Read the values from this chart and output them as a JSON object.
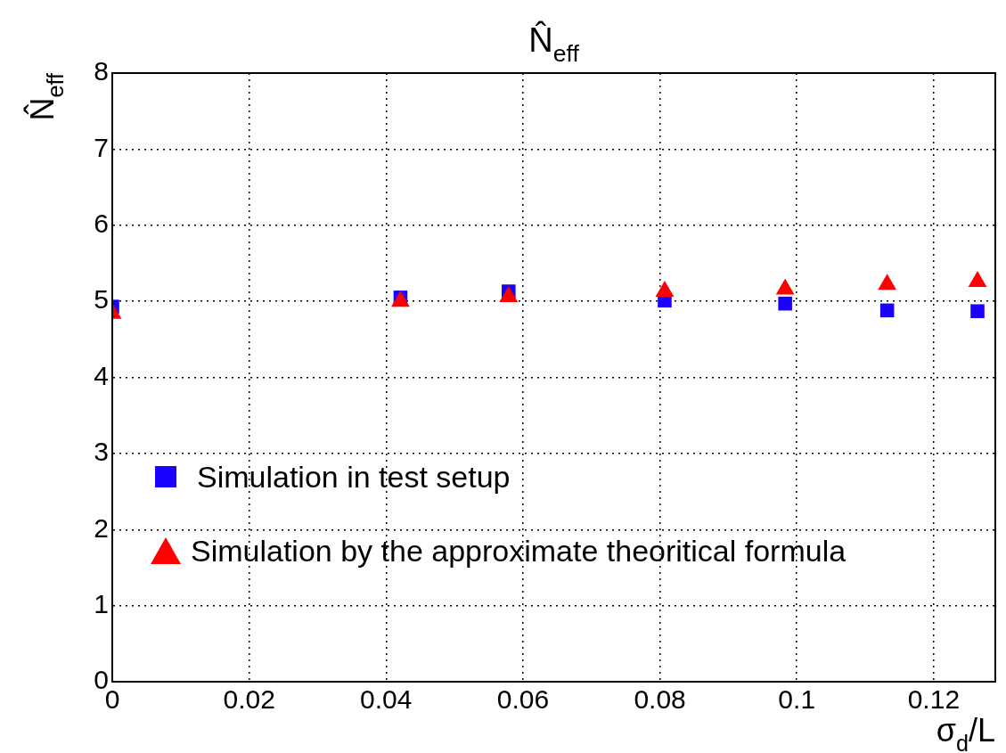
{
  "chart_data": {
    "type": "scatter",
    "title": "N̂$_{eff}$",
    "xlabel": "σ$_{d}$/L",
    "ylabel": "N̂$_{eff}$",
    "xlim": [
      0,
      0.129
    ],
    "xticks": [
      0,
      0.02,
      0.04,
      0.06,
      0.08,
      0.1,
      0.12
    ],
    "ylim": [
      0,
      8
    ],
    "yticks": [
      0,
      1,
      2,
      3,
      4,
      5,
      6,
      7,
      8
    ],
    "grid": true,
    "legend": "bottom left",
    "series": [
      {
        "name": "Simulation in test setup",
        "color": "#1a00ff",
        "marker": "square",
        "x": [
          0,
          0.0421,
          0.0579,
          0.0807,
          0.0983,
          0.1132,
          0.1264
        ],
        "values": [
          4.93,
          5.05,
          5.13,
          5.01,
          4.97,
          4.88,
          4.87
        ]
      },
      {
        "name": "Simulation by the approximate theoritical formula",
        "color": "#ff0000",
        "marker": "triangle",
        "x": [
          0,
          0.0421,
          0.0579,
          0.0807,
          0.0983,
          0.1132,
          0.1264
        ],
        "values": [
          4.84,
          5.0,
          5.06,
          5.13,
          5.16,
          5.22,
          5.26
        ]
      }
    ]
  }
}
